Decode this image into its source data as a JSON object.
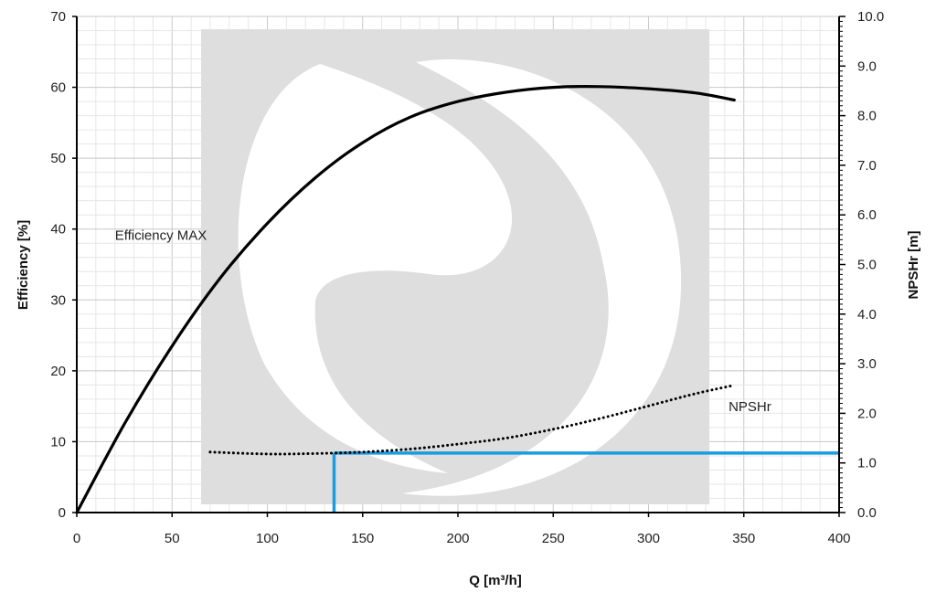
{
  "chart_data": {
    "type": "line",
    "xlabel": "Q  [m³/h]",
    "ylabel_left": "Efficiency  [%]",
    "ylabel_right": "NPSHr [m]",
    "xlim": [
      0,
      400
    ],
    "ylim_left": [
      0,
      70
    ],
    "ylim_right": [
      0,
      10
    ],
    "x_ticks": [
      "0",
      "50",
      "100",
      "150",
      "200",
      "250",
      "300",
      "350",
      "400"
    ],
    "y_left_ticks": [
      "0",
      "10",
      "20",
      "30",
      "40",
      "50",
      "60",
      "70"
    ],
    "y_right_ticks": [
      "0.0",
      "1.0",
      "2.0",
      "3.0",
      "4.0",
      "5.0",
      "6.0",
      "7.0",
      "8.0",
      "9.0",
      "10.0"
    ],
    "grid": true,
    "series": [
      {
        "name": "Efficiency MAX",
        "axis": "left",
        "style": "solid",
        "color": "#000000",
        "x": [
          0,
          25,
          50,
          75,
          100,
          125,
          150,
          175,
          200,
          225,
          250,
          275,
          300,
          325,
          345
        ],
        "y": [
          0,
          12.5,
          23.5,
          33.0,
          40.8,
          47.2,
          52.2,
          55.8,
          58.0,
          59.3,
          60.0,
          60.1,
          59.8,
          59.2,
          58.2
        ]
      },
      {
        "name": "NPSHr",
        "axis": "right",
        "style": "dotted",
        "color": "#000000",
        "x": [
          70,
          100,
          125,
          150,
          175,
          200,
          225,
          250,
          275,
          300,
          325,
          343
        ],
        "y": [
          1.22,
          1.18,
          1.19,
          1.22,
          1.28,
          1.38,
          1.5,
          1.68,
          1.9,
          2.15,
          2.4,
          2.55
        ]
      }
    ],
    "marker_lines": {
      "color": "#1a9ce0",
      "x": 135,
      "y_right": 1.2
    },
    "annotations": [
      {
        "text": "Efficiency MAX",
        "x": 20,
        "y_left": 38.5
      },
      {
        "text": "NPSHr",
        "x": 342,
        "y_left": 14.3
      }
    ],
    "watermark": {
      "color": "#dcdcdc"
    }
  }
}
